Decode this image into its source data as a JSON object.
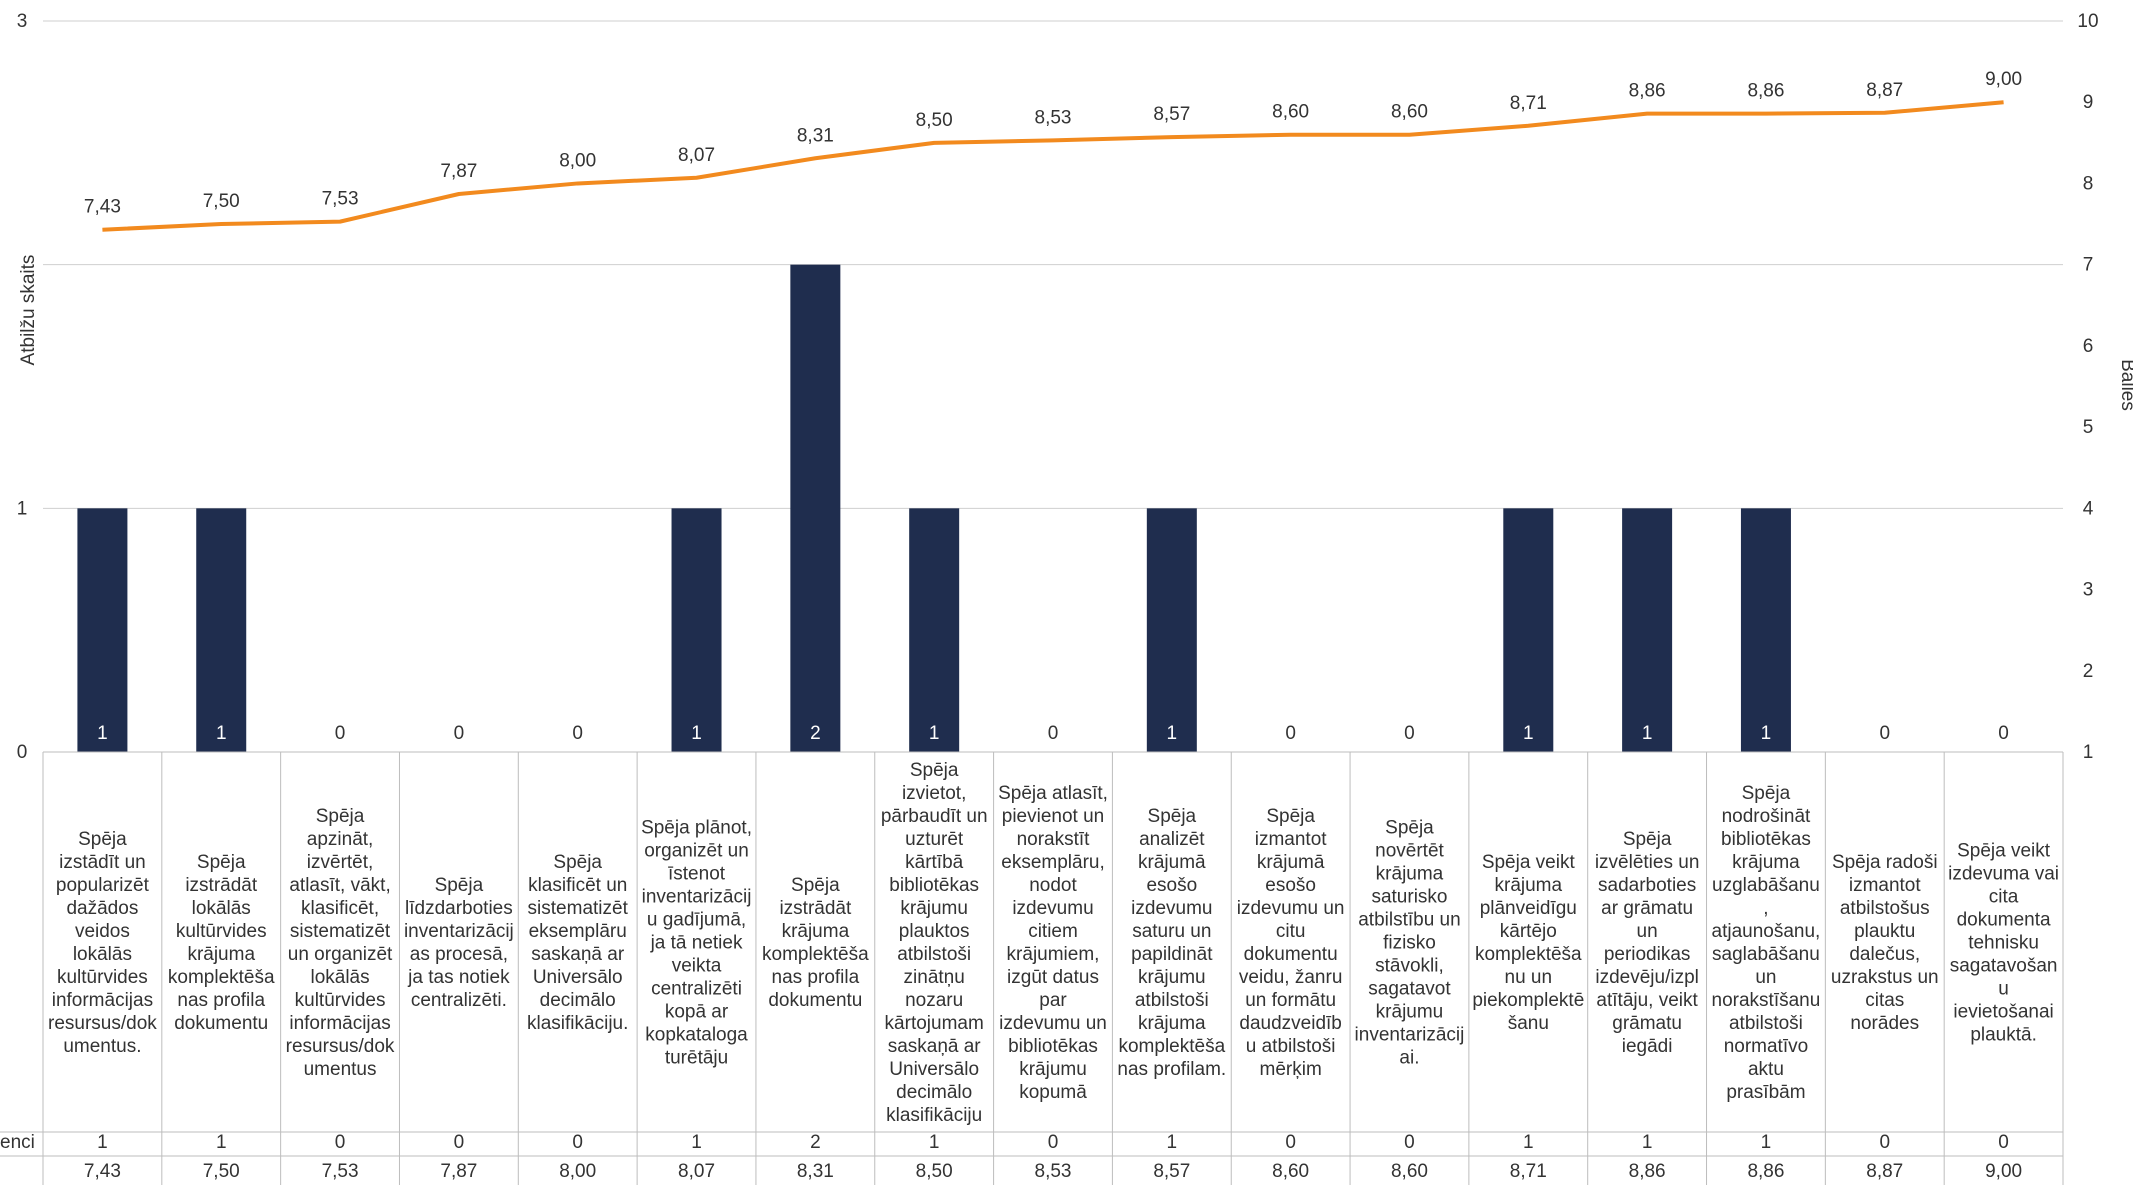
{
  "chart_data": {
    "type": "bar+line",
    "categories": [
      "Spēja izstādīt un popularizēt dažādos veidos lokālās kultūrvides informācijas resursus/dokumentus.",
      "Spēja izstrādāt lokālās kultūrvides krājuma komplektēšanas profila dokumentu",
      "Spēja apzināt, izvērtēt, atlasīt, vākt, klasificēt, sistematizēt un organizēt lokālās kultūrvides informācijas resursus/dokumentus",
      "Spēja līdzdarboties inventarizācijas procesā, ja tas notiek centralizēti.",
      "Spēja klasificēt un sistematizēt eksemplāru saskaņā ar Universālo decimālo klasifikāciju.",
      "Spēja plānot, organizēt un īstenot inventarizāciju gadījumā, ja tā netiek veikta centralizēti kopā ar kopkataloga turētāju",
      "Spēja izstrādāt krājuma komplektēšanas profila dokumentu",
      "Spēja izvietot, pārbaudīt un uzturēt kārtībā bibliotēkas krājumu plauktos atbilstoši zinātņu nozaru kārtojumam saskaņā ar Universālo decimālo klasifikāciju",
      "Spēja atlasīt, pievienot un norakstīt eksemplāru, nodot izdevumu citiem krājumiem, izgūt datus par izdevumu un bibliotēkas krājumu kopumā",
      "Spēja analizēt krājumā esošo izdevumu saturu un papildināt krājumu atbilstoši krājuma komplektēšanas profilam.",
      "Spēja izmantot krājumā esošo izdevumu un citu dokumentu veidu, žanru un formātu daudzveidību atbilstoši mērķim",
      "Spēja novērtēt krājuma saturisko atbilstību un fizisko stāvokli, sagatavot krājumu inventarizācijai.",
      "Spēja veikt krājuma plānveidīgu kārtējo komplektēšanu un piekomplektēšanu",
      "Spēja izvēlēties un sadarboties ar grāmatu un periodikas izdevēju/izplatītāju, veikt grāmatu iegādi",
      "Spēja nodrošināt bibliotēkas krājuma uzglabāšanu, atjaunošanu, saglabāšanu un norakstīšanu atbilstoši normatīvo aktu prasībām",
      "Spēja radoši izmantot atbilstošus plauktu dalečus, uzrakstus un citas norādes",
      "Spēja veikt izdevuma vai cita dokumenta tehnisku sagatavošanu ievietošanai plauktā."
    ],
    "series": [
      {
        "name": "",
        "type": "bar",
        "axis": "left",
        "color": "#1f2d4e",
        "values": [
          1,
          1,
          0,
          0,
          0,
          1,
          2,
          1,
          0,
          1,
          0,
          0,
          1,
          1,
          1,
          0,
          0
        ],
        "labels": [
          "1",
          "1",
          "0",
          "0",
          "0",
          "1",
          "2",
          "1",
          "0",
          "1",
          "0",
          "0",
          "1",
          "1",
          "1",
          "0",
          "0"
        ]
      },
      {
        "name": "",
        "type": "line",
        "axis": "right",
        "color": "#f28a1e",
        "values": [
          7.43,
          7.5,
          7.53,
          7.87,
          8.0,
          8.07,
          8.31,
          8.5,
          8.53,
          8.57,
          8.6,
          8.6,
          8.71,
          8.86,
          8.86,
          8.87,
          9.0
        ],
        "labels": [
          "7,43",
          "7,50",
          "7,53",
          "7,87",
          "8,00",
          "8,07",
          "8,31",
          "8,50",
          "8,53",
          "8,57",
          "8,60",
          "8,60",
          "8,71",
          "8,86",
          "8,86",
          "8,87",
          "9,00"
        ]
      }
    ],
    "ylabel": "Atbilžu skaits",
    "y2label": "Balles",
    "ylim": [
      0,
      3
    ],
    "y2lim": [
      1,
      10
    ],
    "yticks": [
      "0",
      "1",
      "",
      "3"
    ],
    "y2ticks": [
      "1",
      "2",
      "3",
      "4",
      "5",
      "6",
      "7",
      "8",
      "9",
      "10"
    ],
    "table_row_labels": [
      "enci",
      ""
    ],
    "grid": true,
    "legend": "none"
  }
}
